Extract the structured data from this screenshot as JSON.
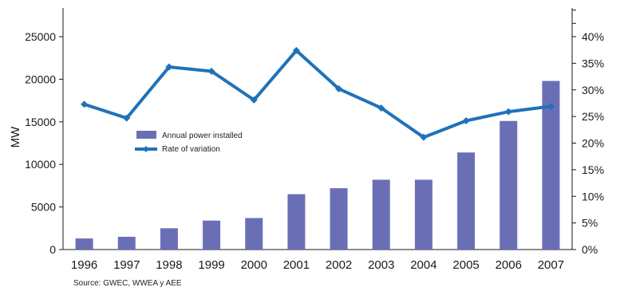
{
  "chart_data": {
    "type": "bar+line",
    "categories": [
      "1996",
      "1997",
      "1998",
      "1999",
      "2000",
      "2001",
      "2002",
      "2003",
      "2004",
      "2005",
      "2006",
      "2007"
    ],
    "series": [
      {
        "name": "Annual power installed",
        "type": "bar",
        "axis": "left",
        "color": "#6a6fb5",
        "values": [
          1300,
          1500,
          2500,
          3400,
          3700,
          6500,
          7200,
          8200,
          8200,
          11400,
          15100,
          19800
        ]
      },
      {
        "name": "Rate of variation",
        "type": "line",
        "axis": "right",
        "color": "#1f72b8",
        "unit": "%",
        "values": [
          27.3,
          24.7,
          34.3,
          33.5,
          28.1,
          37.4,
          30.2,
          26.6,
          21.1,
          24.2,
          25.9,
          26.9
        ]
      }
    ],
    "ylabel": "MW",
    "ylim": [
      0,
      29000
    ],
    "yticks": [
      "0",
      "5000",
      "10000",
      "15000",
      "20000",
      "25000"
    ],
    "y2lim": [
      0,
      45
    ],
    "y2ticks": [
      "0%",
      "5%",
      "10%",
      "15%",
      "20%",
      "25%",
      "30%",
      "35%",
      "40%"
    ],
    "legend_position": "middle-left",
    "grid": false,
    "source": "Source: GWEC, WWEA y AEE"
  }
}
